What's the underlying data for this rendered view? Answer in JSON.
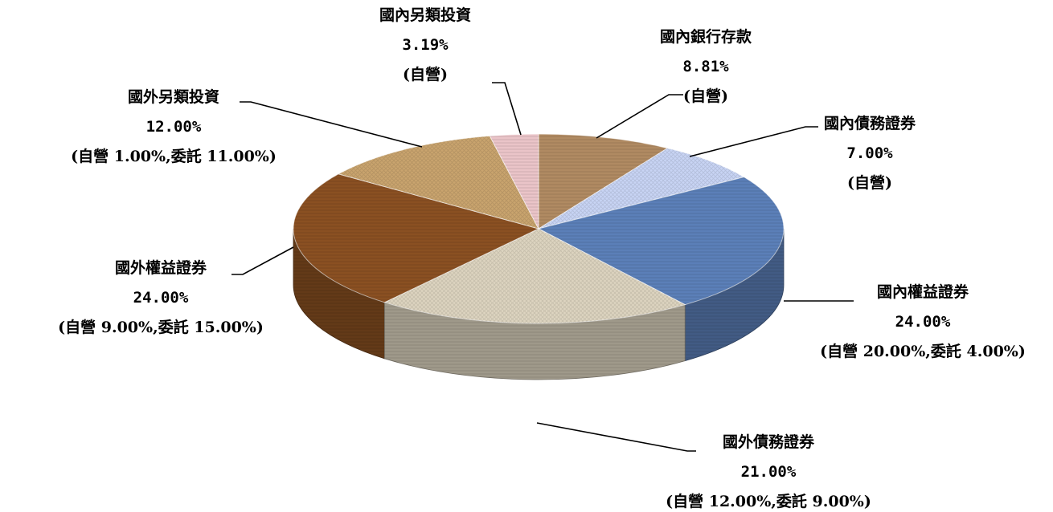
{
  "chart_data": {
    "type": "pie",
    "style": "3d",
    "slices": [
      {
        "name": "國內銀行存款",
        "value": 8.81,
        "value_label": "8.81%",
        "detail": "(自營)",
        "color": "#b08a62"
      },
      {
        "name": "國內債務證券",
        "value": 7.0,
        "value_label": "7.00%",
        "detail": "(自營)",
        "color": "#c8d4f4"
      },
      {
        "name": "國內權益證券",
        "value": 24.0,
        "value_label": "24.00%",
        "detail": "(自營 20.00%,委託 4.00%)",
        "color": "#5b7fb8"
      },
      {
        "name": "國外債務證券",
        "value": 21.0,
        "value_label": "21.00%",
        "detail": "(自營 12.00%,委託 9.00%)",
        "color": "#ddd4c0"
      },
      {
        "name": "國外權益證券",
        "value": 24.0,
        "value_label": "24.00%",
        "detail": "(自營 9.00%,委託 15.00%)",
        "color": "#8a5022"
      },
      {
        "name": "國外另類投資",
        "value": 12.0,
        "value_label": "12.00%",
        "detail": "(自營 1.00%,委託 11.00%)",
        "color": "#c9a46e"
      },
      {
        "name": "國內另類投資",
        "value": 3.19,
        "value_label": "3.19%",
        "detail": "(自營)",
        "color": "#eac4c8"
      }
    ]
  }
}
